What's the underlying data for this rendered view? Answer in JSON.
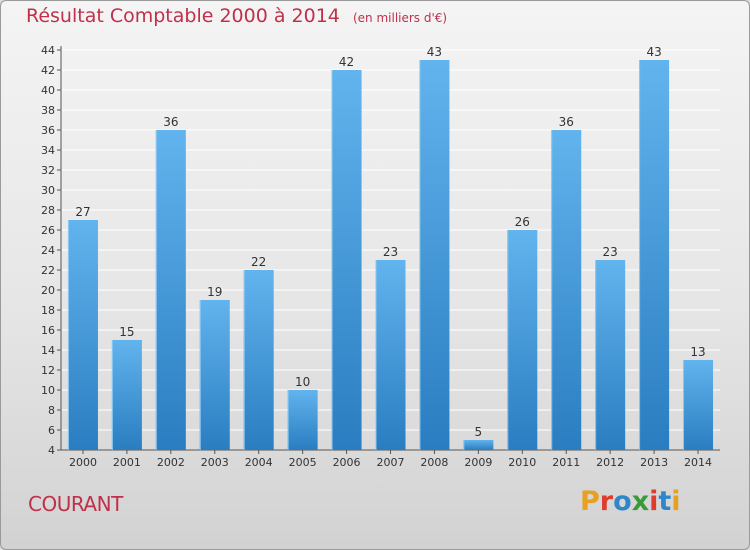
{
  "title": "Résultat Comptable 2000 à 2014",
  "unit": "(en milliers d'€)",
  "commune": "COURANT",
  "logo": {
    "text": "Proxiti",
    "colors": [
      "#e8a020",
      "#e03c2c",
      "#2f86c8",
      "#3a9a3a",
      "#e03c2c",
      "#2f86c8",
      "#e8a020"
    ]
  },
  "colors": {
    "bar_light": "#62b4ee",
    "bar_dark": "#2a7dc0",
    "title": "#c0304a",
    "grid": "#ffffff"
  },
  "chart_data": {
    "type": "bar",
    "categories": [
      "2000",
      "2001",
      "2002",
      "2003",
      "2004",
      "2005",
      "2006",
      "2007",
      "2008",
      "2009",
      "2010",
      "2011",
      "2012",
      "2013",
      "2014"
    ],
    "values": [
      27,
      15,
      36,
      19,
      22,
      10,
      42,
      23,
      43,
      5,
      26,
      36,
      23,
      43,
      13
    ],
    "ylim": [
      4,
      44
    ],
    "yticks": [
      4,
      6,
      8,
      10,
      12,
      14,
      16,
      18,
      20,
      22,
      24,
      26,
      28,
      30,
      32,
      34,
      36,
      38,
      40,
      42,
      44
    ],
    "grid": true,
    "xlabel": "",
    "ylabel": ""
  }
}
